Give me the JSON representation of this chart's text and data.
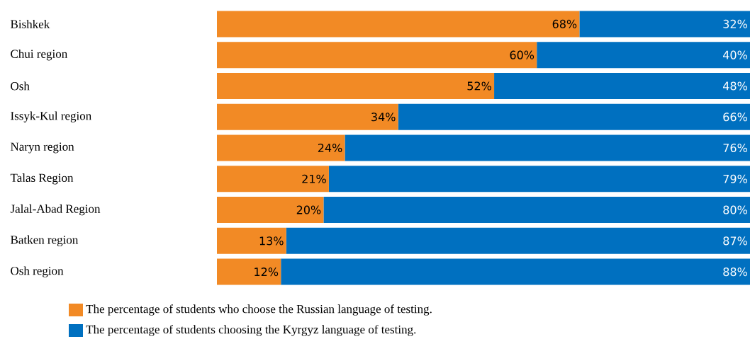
{
  "chart_data": {
    "type": "bar",
    "orientation": "horizontal",
    "stacked": true,
    "tick_labels": "y",
    "legend": "bottom",
    "xlim": [
      0,
      100
    ],
    "categories": [
      "Bishkek",
      "Chui region",
      "Osh",
      "Issyk-Kul region",
      "Naryn region",
      "Talas Region",
      "Jalal-Abad Region",
      "Batken region",
      "Osh region"
    ],
    "series": [
      {
        "name": "The percentage of students who choose the Russian language of testing.",
        "color": "#f28a25",
        "values": [
          68,
          60,
          52,
          34,
          24,
          21,
          20,
          13,
          12
        ],
        "value_labels": [
          "68%",
          "60%",
          "52%",
          "34%",
          "24%",
          "21%",
          "20%",
          "13%",
          "12%"
        ]
      },
      {
        "name": "The percentage of students choosing the Kyrgyz language of testing.",
        "color": "#0070c0",
        "values": [
          32,
          40,
          48,
          66,
          76,
          79,
          80,
          87,
          88
        ],
        "value_labels": [
          "32%",
          "40%",
          "48%",
          "66%",
          "76%",
          "79%",
          "80%",
          "87%",
          "88%"
        ]
      }
    ]
  }
}
